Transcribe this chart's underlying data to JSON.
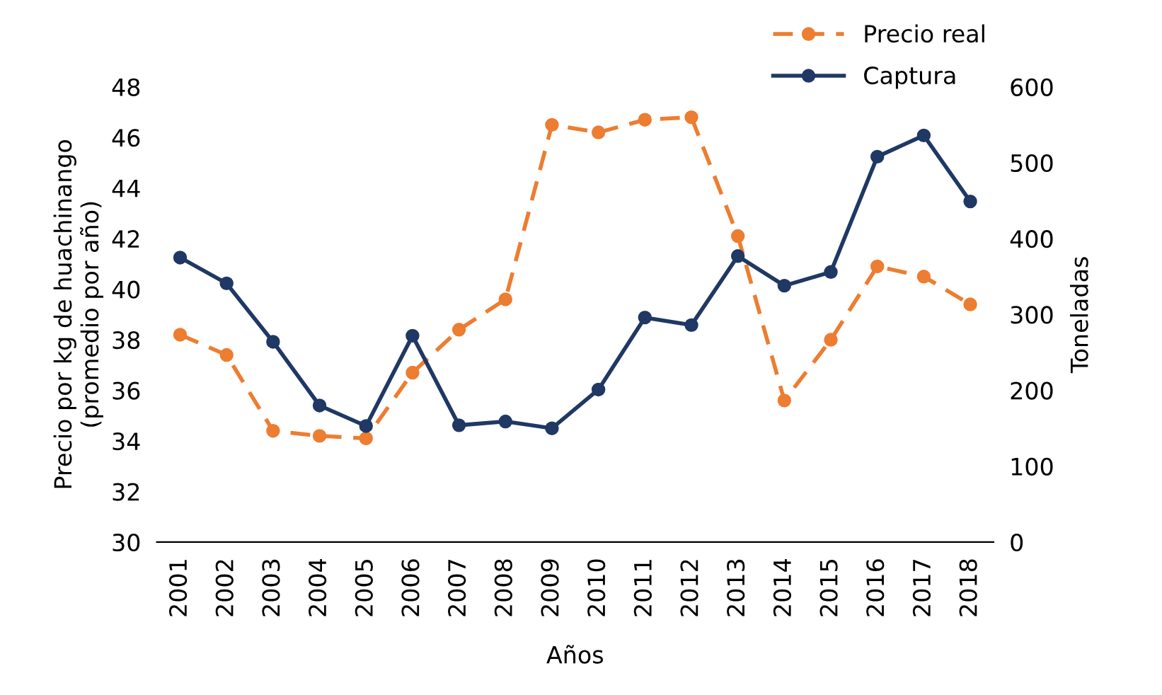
{
  "chart_data": {
    "type": "line",
    "xlabel": "Años",
    "ylabel": "Precio por kg de huachinango\n(promedio por año)",
    "y2label": "Toneladas",
    "categories": [
      "2001",
      "2002",
      "2003",
      "2004",
      "2005",
      "2006",
      "2007",
      "2008",
      "2009",
      "2010",
      "2011",
      "2012",
      "2013",
      "2014",
      "2015",
      "2016",
      "2017",
      "2018"
    ],
    "series": [
      {
        "name": "Precio real",
        "color": "#ed7d31",
        "line_style": "dashed",
        "marker": "circle",
        "values": [
          38.2,
          37.4,
          34.4,
          34.2,
          34.1,
          36.7,
          38.4,
          39.6,
          46.5,
          46.2,
          46.7,
          46.8,
          42.1,
          35.6,
          38.0,
          40.9,
          40.5,
          39.4
        ]
      },
      {
        "name": "Captura",
        "color": "#1f3864",
        "axis": "y2",
        "line_style": "solid",
        "marker": "circle",
        "values": [
          375,
          341,
          264,
          180,
          153,
          272,
          154,
          159,
          150,
          201,
          296,
          286,
          377,
          338,
          356,
          508,
          536,
          449
        ]
      }
    ],
    "ylim": [
      30,
      48
    ],
    "yticks": [
      30,
      32,
      34,
      36,
      38,
      40,
      42,
      44,
      46,
      48
    ],
    "y2lim": [
      0,
      600
    ],
    "y2ticks": [
      0,
      100,
      200,
      300,
      400,
      500,
      600
    ],
    "grid": false,
    "legend": "top right"
  }
}
